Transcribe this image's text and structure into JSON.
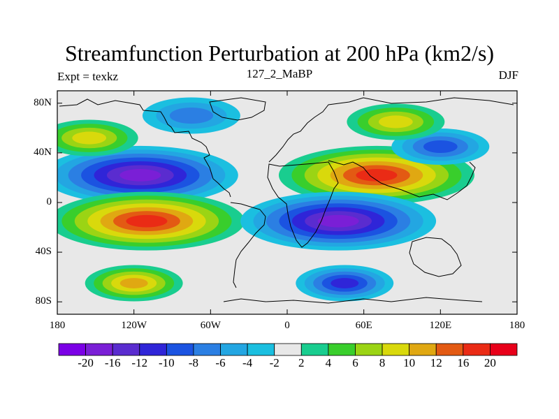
{
  "header": {
    "title": "Streamfunction Perturbation at 200 hPa (km2/s)",
    "left_string": "Expt = texkz",
    "center_string": "127_2_MaBP",
    "right_string": "DJF"
  },
  "axes": {
    "y_ticks": [
      "80N",
      "40N",
      "0",
      "40S",
      "80S"
    ],
    "x_ticks": [
      "180",
      "120W",
      "60W",
      "0",
      "60E",
      "120E",
      "180"
    ]
  },
  "colorbar": {
    "labels": [
      "-20",
      "-16",
      "-12",
      "-10",
      "-8",
      "-6",
      "-4",
      "-2",
      "2",
      "4",
      "6",
      "8",
      "10",
      "12",
      "16",
      "20"
    ],
    "colors": [
      "#7b00e6",
      "#7a1fd6",
      "#5a2ccf",
      "#2f25d8",
      "#1b53e1",
      "#2b7fe3",
      "#23a6e2",
      "#1bbfe0",
      "#e8e8e8",
      "#19cd8f",
      "#39ce2c",
      "#9bd414",
      "#d9d90c",
      "#e0a812",
      "#e35a13",
      "#ea2b15",
      "#e8001a"
    ]
  },
  "chart_data": {
    "type": "heatmap",
    "title": "Streamfunction Perturbation at 200 hPa (km2/s)",
    "projection": "cylindrical equidistant",
    "lon_range": [
      -180,
      180
    ],
    "lat_range": [
      -90,
      90
    ],
    "contour_levels": [
      -20,
      -16,
      -12,
      -10,
      -8,
      -6,
      -4,
      -2,
      2,
      4,
      6,
      8,
      10,
      12,
      16,
      20
    ],
    "features": [
      {
        "name": "low-western-hemisphere-north-subtropics",
        "lon": -115,
        "lat": 22,
        "value": -18
      },
      {
        "name": "high-eastern-hemisphere-north-subtropics",
        "lon": 70,
        "lat": 22,
        "value": 18
      },
      {
        "name": "high-western-hemisphere-south-subtropics",
        "lon": -110,
        "lat": -15,
        "value": 18
      },
      {
        "name": "low-indian-ocean-south-subtropics",
        "lon": 40,
        "lat": -15,
        "value": -18
      },
      {
        "name": "low-southern-ocean",
        "lon": 45,
        "lat": -65,
        "value": -12
      },
      {
        "name": "low-north-pacific-high-lat",
        "lon": 120,
        "lat": 45,
        "value": -10
      },
      {
        "name": "low-north-atlantic-high-lat",
        "lon": -75,
        "lat": 70,
        "value": -8
      },
      {
        "name": "high-south-pacific-high-lat",
        "lon": -120,
        "lat": -65,
        "value": 10
      },
      {
        "name": "high-north-pacific-high-lat",
        "lon": -155,
        "lat": 52,
        "value": 8
      },
      {
        "name": "high-siberia",
        "lon": 85,
        "lat": 65,
        "value": 8
      }
    ]
  }
}
